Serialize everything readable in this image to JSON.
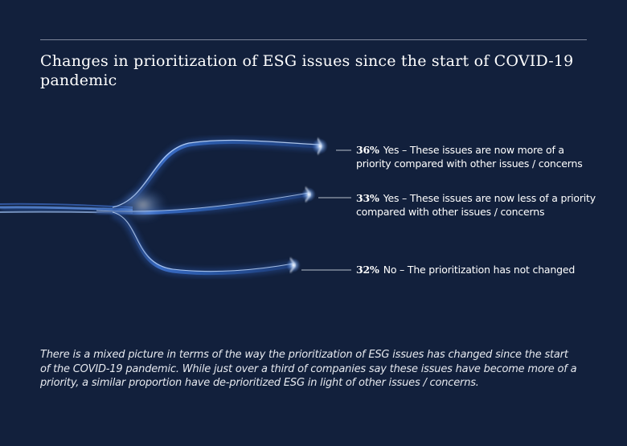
{
  "title": "Changes in prioritization of ESG issues since the start of COVID-19 pandemic",
  "chart_data": {
    "type": "bar",
    "categories": [
      "Yes – These issues are now more of a priority compared with other issues / concerns",
      "Yes – These issues are now less of a priority compared with other issues  / concerns",
      "No – The prioritization has not changed"
    ],
    "values": [
      36,
      33,
      32
    ],
    "value_labels": [
      "36%",
      "33%",
      "32%"
    ],
    "unit": "%"
  },
  "caption": "There is a mixed picture in terms of the way the prioritization of ESG issues has changed since the start of the COVID-19 pandemic. While just over a third of companies say these issues have become more of a priority, a similar proportion have de-prioritized ESG in light of other issues / concerns.",
  "colors": {
    "background": "#12203c",
    "cable": "#2f5fb8",
    "glow": "#cfe3ff",
    "leader": "#b8bfcc"
  }
}
